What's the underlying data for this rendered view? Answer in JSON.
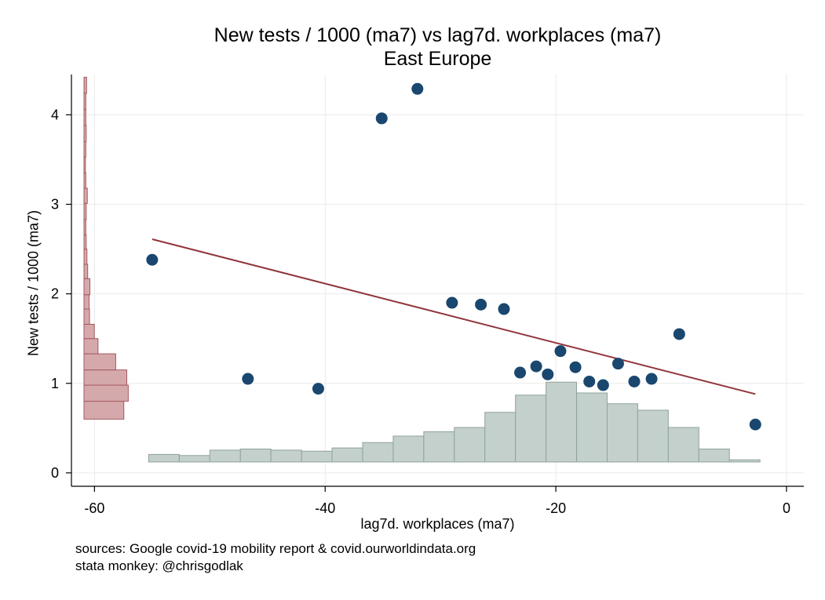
{
  "chart_data": {
    "type": "scatter",
    "title": "New tests / 1000 (ma7) vs lag7d. workplaces (ma7)",
    "subtitle": "East Europe",
    "xlabel": "lag7d. workplaces (ma7)",
    "ylabel": "New tests / 1000 (ma7)",
    "xlim": [
      -62,
      1.5
    ],
    "ylim": [
      -0.15,
      4.45
    ],
    "x_ticks": [
      -60,
      -40,
      -20,
      0
    ],
    "y_ticks": [
      0,
      1,
      2,
      3,
      4
    ],
    "grid": true,
    "colors": {
      "points": "#1a476f",
      "fit_line": "#90353b",
      "y_hist_fill": "#d5a9ac",
      "y_hist_stroke": "#a4585e",
      "x_hist_fill": "#c4d0cb",
      "x_hist_stroke": "#8fa39a",
      "grid": "#eaeaea"
    },
    "points": [
      {
        "x": -55,
        "y": 2.38
      },
      {
        "x": -46.7,
        "y": 1.05
      },
      {
        "x": -40.6,
        "y": 0.94
      },
      {
        "x": -35.1,
        "y": 3.96
      },
      {
        "x": -32,
        "y": 4.29
      },
      {
        "x": -29,
        "y": 1.9
      },
      {
        "x": -26.5,
        "y": 1.88
      },
      {
        "x": -24.5,
        "y": 1.83
      },
      {
        "x": -23.1,
        "y": 1.12
      },
      {
        "x": -21.7,
        "y": 1.19
      },
      {
        "x": -20.7,
        "y": 1.1
      },
      {
        "x": -19.6,
        "y": 1.36
      },
      {
        "x": -18.3,
        "y": 1.18
      },
      {
        "x": -17.1,
        "y": 1.02
      },
      {
        "x": -15.9,
        "y": 0.98
      },
      {
        "x": -14.6,
        "y": 1.22
      },
      {
        "x": -13.2,
        "y": 1.02
      },
      {
        "x": -11.7,
        "y": 1.05
      },
      {
        "x": -9.3,
        "y": 1.55
      },
      {
        "x": -2.7,
        "y": 0.54
      }
    ],
    "fit_line": {
      "x": [
        -55,
        -2.7
      ],
      "y": [
        2.61,
        0.88
      ]
    },
    "x_hist": {
      "edges": [
        -55.3,
        -52.65,
        -50,
        -47.35,
        -44.7,
        -42.05,
        -39.4,
        -36.75,
        -34.1,
        -31.45,
        -28.8,
        -26.15,
        -23.5,
        -20.85,
        -18.2,
        -15.55,
        -12.9,
        -10.25,
        -7.6,
        -4.95,
        -2.3
      ],
      "heights": [
        0.035,
        0.03,
        0.055,
        0.06,
        0.055,
        0.05,
        0.065,
        0.09,
        0.12,
        0.14,
        0.16,
        0.23,
        0.31,
        0.37,
        0.32,
        0.27,
        0.24,
        0.16,
        0.06,
        0.01
      ]
    },
    "y_hist": {
      "edges": [
        0.6,
        0.8,
        0.98,
        1.15,
        1.33,
        1.5,
        1.66,
        1.83,
        1.99,
        2.17,
        2.33,
        2.5,
        2.66,
        2.83,
        3.01,
        3.18,
        3.35,
        3.53,
        3.7,
        3.88,
        4.06,
        4.24,
        4.42
      ],
      "widths": [
        5.4,
        6,
        5.8,
        4.3,
        1.9,
        1.4,
        0.75,
        0.7,
        0.8,
        0.5,
        0.4,
        0.3,
        0.25,
        0.3,
        0.45,
        0.25,
        0.2,
        0.25,
        0.3,
        0.25,
        0.25,
        0.35
      ]
    }
  },
  "notes": {
    "source": "sources: Google covid-19 mobility report & covid.ourworldindata.org",
    "credit": "stata monkey: @chrisgodlak"
  }
}
